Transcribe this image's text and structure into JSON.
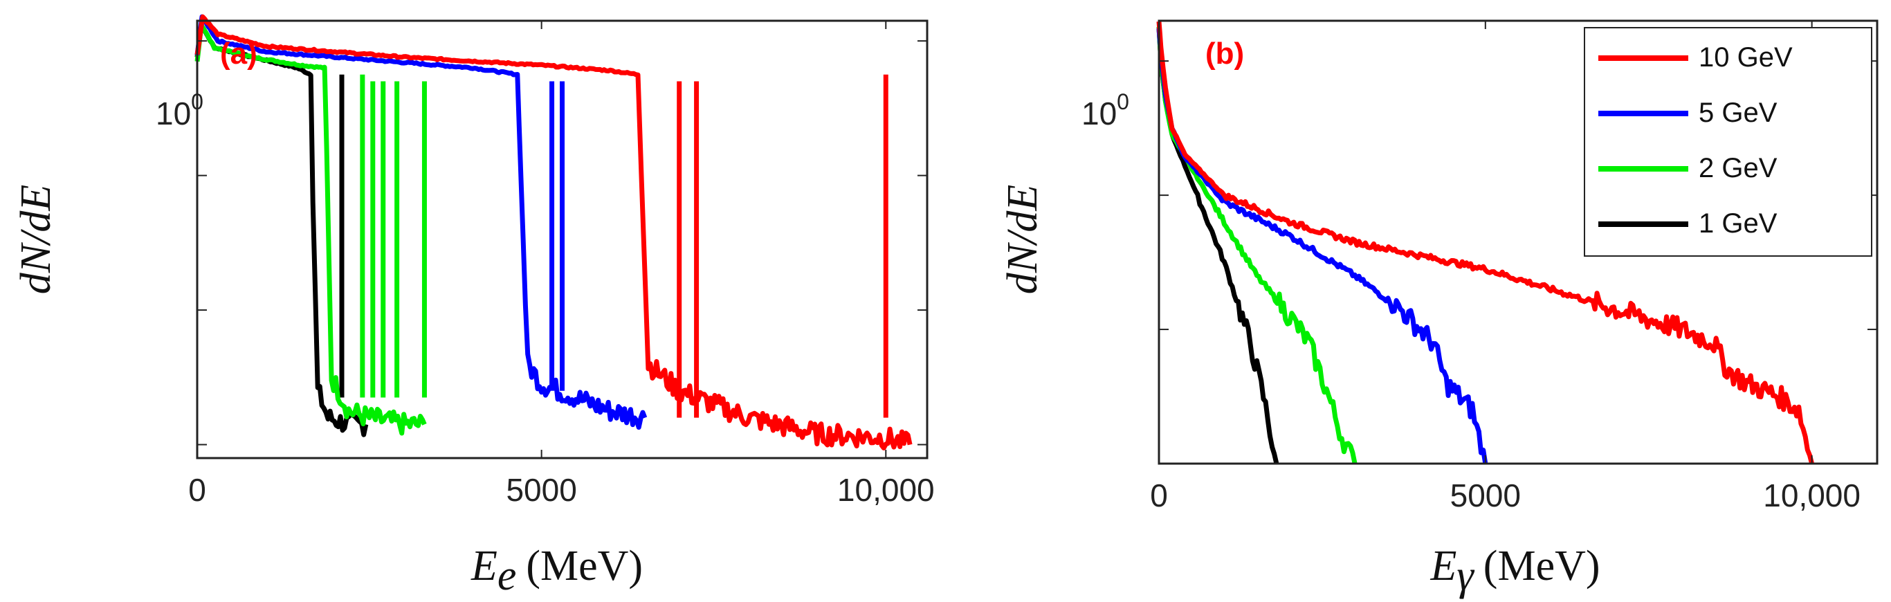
{
  "colors": {
    "10 GeV": "#ff0000",
    "5 GeV": "#0000ff",
    "2 GeV": "#00ee00",
    "1 GeV": "#000000",
    "axis": "#222222",
    "panel_label": "#ff0000"
  },
  "chart_data": [
    {
      "type": "line",
      "panel_label": "(a)",
      "xlabel": {
        "var": "E",
        "sub": "e",
        "unit": "(MeV)"
      },
      "ylabel": "dN/dE",
      "xlim": [
        0,
        10600
      ],
      "x_ticks": [
        0,
        5000,
        10000
      ],
      "x_tick_labels": [
        "0",
        "5000",
        "10,000"
      ],
      "y_scale": "log",
      "ylim_log10": [
        -3.1,
        0.15
      ],
      "y_tick_label": {
        "base": "10",
        "exp": "0",
        "at_log10": 0
      },
      "legend": "none",
      "series": [
        {
          "name": "10 GeV",
          "curve": [
            [
              0,
              -0.1
            ],
            [
              80,
              0.18
            ],
            [
              300,
              0.05
            ],
            [
              1000,
              -0.04
            ],
            [
              2000,
              -0.08
            ],
            [
              3000,
              -0.12
            ],
            [
              4000,
              -0.15
            ],
            [
              5000,
              -0.18
            ],
            [
              6000,
              -0.22
            ],
            [
              6400,
              -0.25
            ],
            [
              6450,
              -1.0
            ],
            [
              6550,
              -2.4
            ],
            [
              7000,
              -2.6
            ],
            [
              8000,
              -2.8
            ],
            [
              9000,
              -2.92
            ],
            [
              10000,
              -2.95
            ],
            [
              10350,
              -3.0
            ]
          ],
          "spikes": [
            [
              7000,
              -0.3
            ],
            [
              7250,
              -0.3
            ],
            [
              10000,
              -0.25
            ]
          ]
        },
        {
          "name": "5 GeV",
          "curve": [
            [
              0,
              -0.1
            ],
            [
              70,
              0.18
            ],
            [
              300,
              0.0
            ],
            [
              1000,
              -0.08
            ],
            [
              2000,
              -0.12
            ],
            [
              3000,
              -0.16
            ],
            [
              4000,
              -0.2
            ],
            [
              4650,
              -0.25
            ],
            [
              4700,
              -1.0
            ],
            [
              4800,
              -2.4
            ],
            [
              5000,
              -2.55
            ],
            [
              5500,
              -2.65
            ],
            [
              6000,
              -2.75
            ],
            [
              6500,
              -2.8
            ]
          ],
          "spikes": [
            [
              5150,
              -0.3
            ],
            [
              5300,
              -0.3
            ]
          ]
        },
        {
          "name": "2 GeV",
          "curve": [
            [
              0,
              -0.15
            ],
            [
              60,
              0.12
            ],
            [
              250,
              -0.05
            ],
            [
              800,
              -0.12
            ],
            [
              1500,
              -0.18
            ],
            [
              1850,
              -0.2
            ],
            [
              1880,
              -0.8
            ],
            [
              1950,
              -2.5
            ],
            [
              2200,
              -2.75
            ],
            [
              2500,
              -2.8
            ],
            [
              3000,
              -2.85
            ],
            [
              3300,
              -2.85
            ]
          ],
          "gaps": [
            [
              3800,
              4500
            ]
          ],
          "spikes": [
            [
              2400,
              -0.25
            ],
            [
              2550,
              -0.3
            ],
            [
              2700,
              -0.3
            ],
            [
              2900,
              -0.3
            ],
            [
              3300,
              -0.3
            ]
          ]
        },
        {
          "name": "1 GeV",
          "curve": [
            [
              0,
              -0.12
            ],
            [
              60,
              0.12
            ],
            [
              250,
              -0.05
            ],
            [
              800,
              -0.12
            ],
            [
              1450,
              -0.2
            ],
            [
              1650,
              -0.25
            ],
            [
              1680,
              -1.2
            ],
            [
              1750,
              -2.6
            ],
            [
              1900,
              -2.8
            ],
            [
              2200,
              -2.85
            ],
            [
              2450,
              -2.85
            ]
          ],
          "spikes": [
            [
              2100,
              -0.25
            ]
          ]
        }
      ]
    },
    {
      "type": "line",
      "panel_label": "(b)",
      "xlabel": {
        "var": "E",
        "sub": "γ",
        "unit": "(MeV)"
      },
      "ylabel": "dN/dE",
      "xlim": [
        0,
        11000
      ],
      "x_ticks": [
        0,
        5000,
        10000
      ],
      "x_tick_labels": [
        "0",
        "5000",
        "10,000"
      ],
      "y_scale": "log",
      "ylim_log10": [
        -3.0,
        0.3
      ],
      "y_tick_label": {
        "base": "10",
        "exp": "0",
        "at_log10": 0
      },
      "legend": "top-right",
      "series": [
        {
          "name": "10 GeV",
          "curve": [
            [
              0,
              0.3
            ],
            [
              30,
              0.1
            ],
            [
              100,
              -0.2
            ],
            [
              200,
              -0.5
            ],
            [
              400,
              -0.7
            ],
            [
              1000,
              -1.0
            ],
            [
              2000,
              -1.2
            ],
            [
              3000,
              -1.35
            ],
            [
              4000,
              -1.45
            ],
            [
              5000,
              -1.55
            ],
            [
              6000,
              -1.7
            ],
            [
              7000,
              -1.85
            ],
            [
              8000,
              -2.0
            ],
            [
              8500,
              -2.1
            ],
            [
              8700,
              -2.3
            ],
            [
              9000,
              -2.4
            ],
            [
              9500,
              -2.5
            ],
            [
              9800,
              -2.6
            ],
            [
              10000,
              -3.0
            ]
          ]
        },
        {
          "name": "5 GeV",
          "curve": [
            [
              0,
              0.25
            ],
            [
              30,
              0.05
            ],
            [
              100,
              -0.25
            ],
            [
              200,
              -0.5
            ],
            [
              400,
              -0.72
            ],
            [
              1000,
              -1.05
            ],
            [
              2000,
              -1.3
            ],
            [
              3000,
              -1.6
            ],
            [
              3700,
              -1.85
            ],
            [
              4200,
              -2.1
            ],
            [
              4400,
              -2.4
            ],
            [
              4800,
              -2.6
            ],
            [
              5000,
              -3.0
            ]
          ]
        },
        {
          "name": "2 GeV",
          "curve": [
            [
              0,
              0.25
            ],
            [
              30,
              0.0
            ],
            [
              100,
              -0.3
            ],
            [
              200,
              -0.55
            ],
            [
              500,
              -0.8
            ],
            [
              1000,
              -1.2
            ],
            [
              1500,
              -1.6
            ],
            [
              2000,
              -1.9
            ],
            [
              2300,
              -2.1
            ],
            [
              2600,
              -2.5
            ],
            [
              2800,
              -2.8
            ],
            [
              3000,
              -3.0
            ]
          ]
        },
        {
          "name": "1 GeV",
          "curve": [
            [
              0,
              0.25
            ],
            [
              30,
              0.0
            ],
            [
              100,
              -0.3
            ],
            [
              200,
              -0.55
            ],
            [
              500,
              -0.9
            ],
            [
              1000,
              -1.5
            ],
            [
              1400,
              -2.1
            ],
            [
              1600,
              -2.5
            ],
            [
              1800,
              -3.0
            ]
          ]
        }
      ]
    }
  ]
}
